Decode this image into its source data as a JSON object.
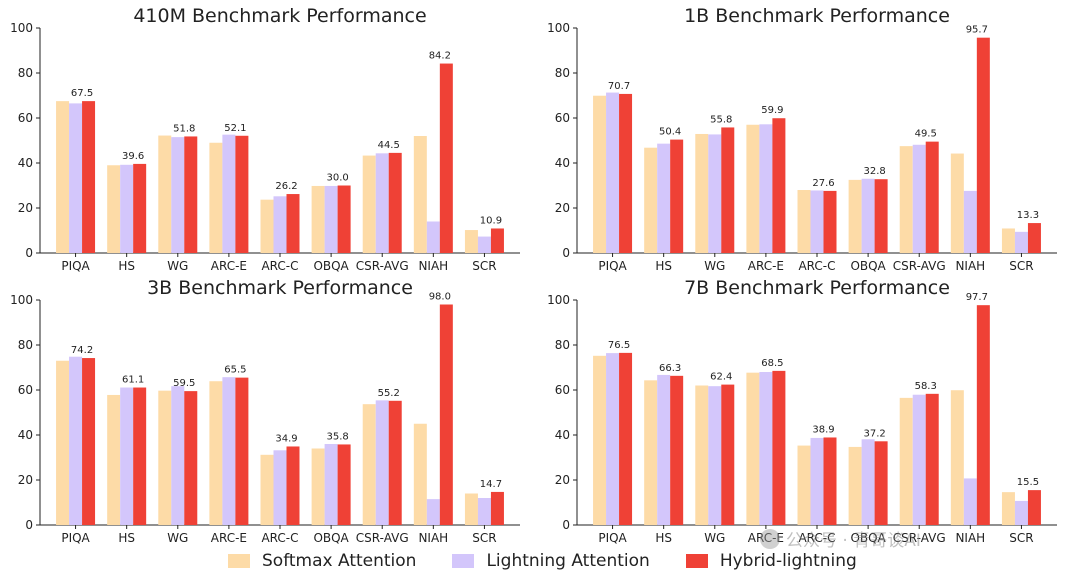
{
  "chart_data": [
    {
      "type": "bar",
      "title": "410M Benchmark Performance",
      "categories": [
        "PIQA",
        "HS",
        "WG",
        "ARC-E",
        "ARC-C",
        "OBQA",
        "CSR-AVG",
        "NIAH",
        "SCR"
      ],
      "ylim": [
        0,
        100
      ],
      "yticks": [
        0,
        20,
        40,
        60,
        80,
        100
      ],
      "series": [
        {
          "name": "Softmax Attention",
          "values": [
            67.5,
            39.0,
            52.2,
            49.0,
            23.7,
            29.8,
            43.3,
            52.0,
            10.2
          ]
        },
        {
          "name": "Lightning Attention",
          "values": [
            66.5,
            39.2,
            51.5,
            52.6,
            25.2,
            29.8,
            44.3,
            14.0,
            7.3
          ]
        },
        {
          "name": "Hybrid-lightning",
          "values": [
            67.5,
            39.6,
            51.8,
            52.1,
            26.2,
            30.0,
            44.5,
            84.2,
            10.9
          ]
        }
      ],
      "labels": [
        "67.5",
        "39.6",
        "51.8",
        "52.1",
        "26.2",
        "30.0",
        "44.5",
        "84.2",
        "10.9"
      ]
    },
    {
      "type": "bar",
      "title": "1B Benchmark Performance",
      "categories": [
        "PIQA",
        "HS",
        "WG",
        "ARC-E",
        "ARC-C",
        "OBQA",
        "CSR-AVG",
        "NIAH",
        "SCR"
      ],
      "ylim": [
        0,
        100
      ],
      "yticks": [
        0,
        20,
        40,
        60,
        80,
        100
      ],
      "series": [
        {
          "name": "Softmax Attention",
          "values": [
            69.9,
            46.8,
            52.9,
            57.0,
            28.0,
            32.5,
            47.5,
            44.2,
            10.9
          ]
        },
        {
          "name": "Lightning Attention",
          "values": [
            71.3,
            48.6,
            52.7,
            57.2,
            27.8,
            33.0,
            48.1,
            27.6,
            9.4
          ]
        },
        {
          "name": "Hybrid-lightning",
          "values": [
            70.7,
            50.4,
            55.8,
            59.9,
            27.6,
            32.8,
            49.5,
            95.7,
            13.3
          ]
        }
      ],
      "labels": [
        "70.7",
        "50.4",
        "55.8",
        "59.9",
        "27.6",
        "32.8",
        "49.5",
        "95.7",
        "13.3"
      ]
    },
    {
      "type": "bar",
      "title": "3B Benchmark Performance",
      "categories": [
        "PIQA",
        "HS",
        "WG",
        "ARC-E",
        "ARC-C",
        "OBQA",
        "CSR-AVG",
        "NIAH",
        "SCR"
      ],
      "ylim": [
        0,
        100
      ],
      "yticks": [
        0,
        20,
        40,
        60,
        80,
        100
      ],
      "series": [
        {
          "name": "Softmax Attention",
          "values": [
            73.0,
            57.8,
            59.7,
            63.9,
            31.2,
            34.0,
            53.7,
            45.0,
            14.0
          ]
        },
        {
          "name": "Lightning Attention",
          "values": [
            74.8,
            61.1,
            61.7,
            65.7,
            33.2,
            36.0,
            55.4,
            11.5,
            12.0
          ]
        },
        {
          "name": "Hybrid-lightning",
          "values": [
            74.2,
            61.1,
            59.5,
            65.5,
            34.9,
            35.8,
            55.2,
            98.0,
            14.7
          ]
        }
      ],
      "labels": [
        "74.2",
        "61.1",
        "59.5",
        "65.5",
        "34.9",
        "35.8",
        "55.2",
        "98.0",
        "14.7"
      ]
    },
    {
      "type": "bar",
      "title": "7B Benchmark Performance",
      "categories": [
        "PIQA",
        "HS",
        "WG",
        "ARC-E",
        "ARC-C",
        "OBQA",
        "CSR-AVG",
        "NIAH",
        "SCR"
      ],
      "ylim": [
        0,
        100
      ],
      "yticks": [
        0,
        20,
        40,
        60,
        80,
        100
      ],
      "series": [
        {
          "name": "Softmax Attention",
          "values": [
            75.2,
            64.3,
            62.0,
            67.7,
            35.3,
            34.7,
            56.5,
            59.9,
            14.6
          ]
        },
        {
          "name": "Lightning Attention",
          "values": [
            76.4,
            66.7,
            61.7,
            68.0,
            38.7,
            38.1,
            57.9,
            20.7,
            10.7
          ]
        },
        {
          "name": "Hybrid-lightning",
          "values": [
            76.5,
            66.3,
            62.4,
            68.5,
            38.9,
            37.2,
            58.3,
            97.7,
            15.5
          ]
        }
      ],
      "labels": [
        "76.5",
        "66.3",
        "62.4",
        "68.5",
        "38.9",
        "37.2",
        "58.3",
        "97.7",
        "15.5"
      ]
    }
  ],
  "legend": {
    "items": [
      {
        "label": "Softmax Attention",
        "color": "#fddba7"
      },
      {
        "label": "Lightning Attention",
        "color": "#d3c6fb"
      },
      {
        "label": "Hybrid-lightning",
        "color": "#ef4136"
      }
    ]
  },
  "watermark": {
    "text": "公众号 · 青哥谈AI",
    "icon": "wechat-icon"
  }
}
